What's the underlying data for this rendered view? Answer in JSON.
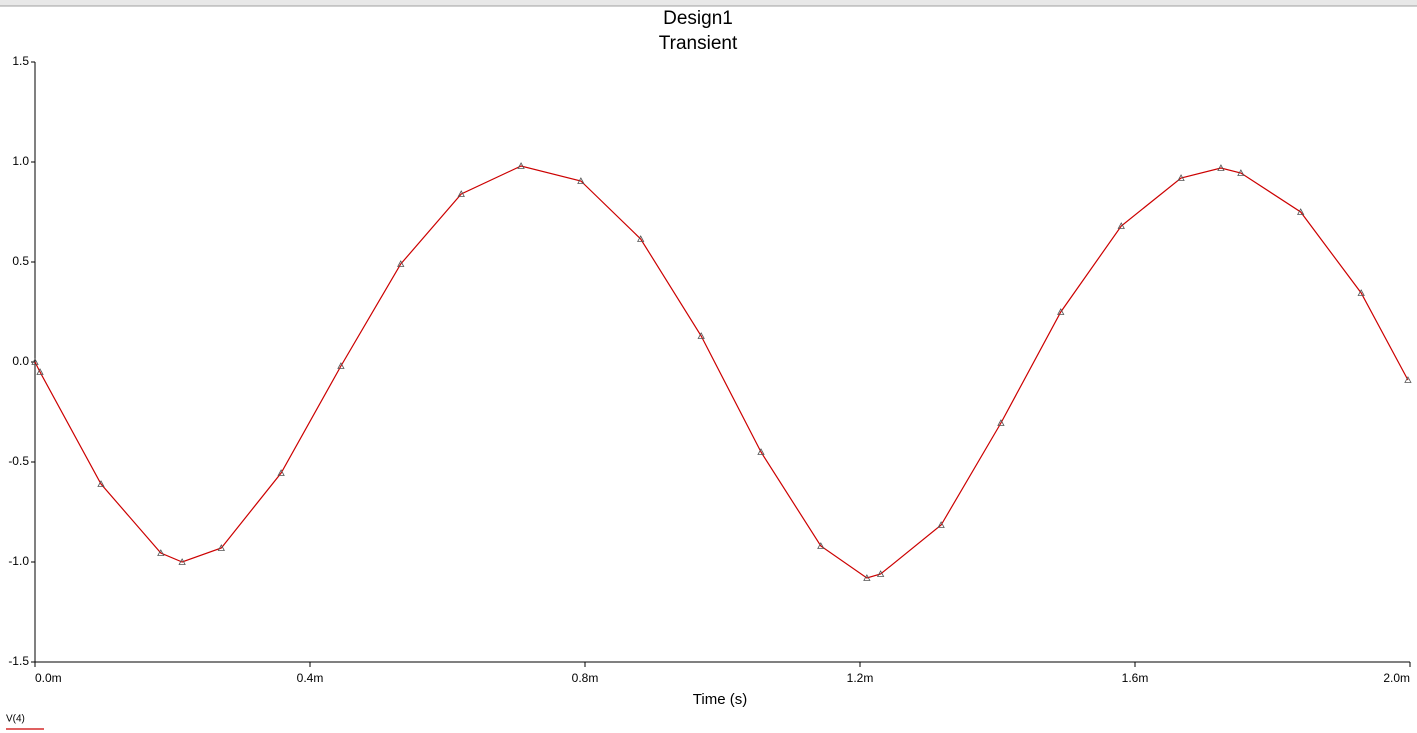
{
  "chart_data": {
    "type": "line",
    "title": "Design1",
    "subtitle": "Transient",
    "x_label": "Time (s)",
    "x": [
      0,
      7.3e-06,
      9.6e-05,
      0.000183,
      0.000214,
      0.000271,
      0.000358,
      0.000445,
      0.000532,
      0.00062,
      0.000707,
      0.000794,
      0.000881,
      0.000969,
      0.001056,
      0.001143,
      0.00121,
      0.00123,
      0.001318,
      0.001405,
      0.001492,
      0.00158,
      0.001667,
      0.001725,
      0.001754,
      0.001841,
      0.001929,
      0.001997
    ],
    "series": [
      {
        "name": "V(4)",
        "color": "#cc0000",
        "values": [
          0,
          -0.05,
          -0.61,
          -0.955,
          -1.0,
          -0.93,
          -0.555,
          -0.02,
          0.49,
          0.84,
          0.98,
          0.905,
          0.615,
          0.13,
          -0.45,
          -0.92,
          -1.08,
          -1.06,
          -0.815,
          -0.305,
          0.25,
          0.68,
          0.92,
          0.97,
          0.945,
          0.75,
          0.345,
          -0.09
        ]
      }
    ],
    "xlim": [
      0,
      0.002
    ],
    "xticks": [
      {
        "value": 0,
        "label": "0.0m"
      },
      {
        "value": 0.0004,
        "label": "0.4m"
      },
      {
        "value": 0.0008,
        "label": "0.8m"
      },
      {
        "value": 0.0012,
        "label": "1.2m"
      },
      {
        "value": 0.0016,
        "label": "1.6m"
      },
      {
        "value": 0.002,
        "label": "2.0m"
      }
    ],
    "ylim": [
      -1.5,
      1.5
    ],
    "yticks": [
      -1.5,
      {
        "value": -1,
        "label": "-1.0"
      },
      -0.5,
      {
        "value": 0,
        "label": "0.0"
      },
      0.5,
      {
        "value": 1,
        "label": "1.0"
      },
      1.5
    ],
    "markers": true,
    "grid": false
  }
}
